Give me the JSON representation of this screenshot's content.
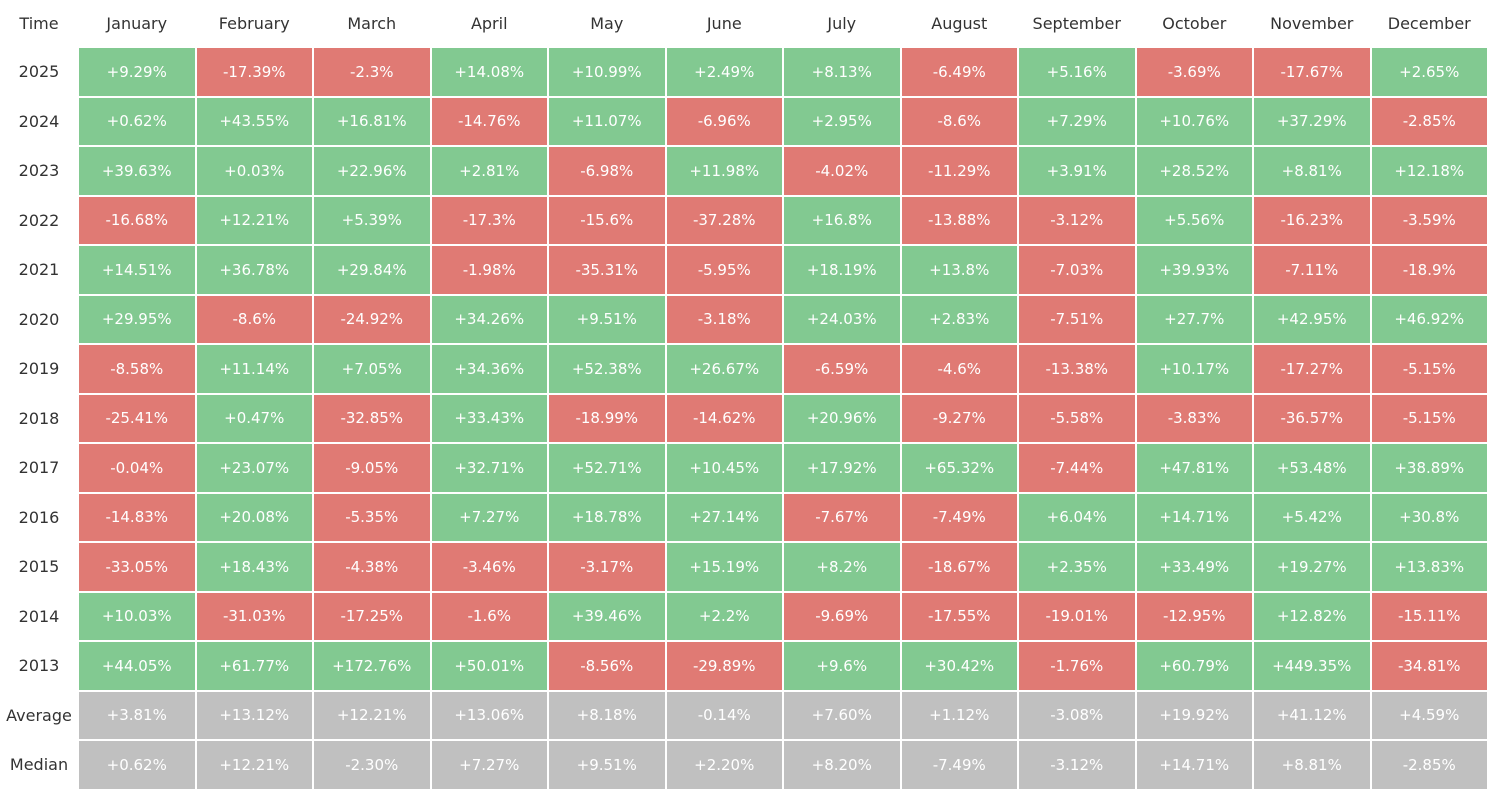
{
  "table": {
    "header": [
      "Time",
      "January",
      "February",
      "March",
      "April",
      "May",
      "June",
      "July",
      "August",
      "September",
      "October",
      "November",
      "December"
    ],
    "rows": [
      [
        "2025",
        "+9.29%",
        "-17.39%",
        "-2.3%",
        "+14.08%",
        "+10.99%",
        "+2.49%",
        "+8.13%",
        "-6.49%",
        "+5.16%",
        "-3.69%",
        "-17.67%",
        "+2.65%"
      ],
      [
        "2024",
        "+0.62%",
        "+43.55%",
        "+16.81%",
        "-14.76%",
        "+11.07%",
        "-6.96%",
        "+2.95%",
        "-8.6%",
        "+7.29%",
        "+10.76%",
        "+37.29%",
        "-2.85%"
      ],
      [
        "2023",
        "+39.63%",
        "+0.03%",
        "+22.96%",
        "+2.81%",
        "-6.98%",
        "+11.98%",
        "-4.02%",
        "-11.29%",
        "+3.91%",
        "+28.52%",
        "+8.81%",
        "+12.18%"
      ],
      [
        "2022",
        "-16.68%",
        "+12.21%",
        "+5.39%",
        "-17.3%",
        "-15.6%",
        "-37.28%",
        "+16.8%",
        "-13.88%",
        "-3.12%",
        "+5.56%",
        "-16.23%",
        "-3.59%"
      ],
      [
        "2021",
        "+14.51%",
        "+36.78%",
        "+29.84%",
        "-1.98%",
        "-35.31%",
        "-5.95%",
        "+18.19%",
        "+13.8%",
        "-7.03%",
        "+39.93%",
        "-7.11%",
        "-18.9%"
      ],
      [
        "2020",
        "+29.95%",
        "-8.6%",
        "-24.92%",
        "+34.26%",
        "+9.51%",
        "-3.18%",
        "+24.03%",
        "+2.83%",
        "-7.51%",
        "+27.7%",
        "+42.95%",
        "+46.92%"
      ],
      [
        "2019",
        "-8.58%",
        "+11.14%",
        "+7.05%",
        "+34.36%",
        "+52.38%",
        "+26.67%",
        "-6.59%",
        "-4.6%",
        "-13.38%",
        "+10.17%",
        "-17.27%",
        "-5.15%"
      ],
      [
        "2018",
        "-25.41%",
        "+0.47%",
        "-32.85%",
        "+33.43%",
        "-18.99%",
        "-14.62%",
        "+20.96%",
        "-9.27%",
        "-5.58%",
        "-3.83%",
        "-36.57%",
        "-5.15%"
      ],
      [
        "2017",
        "-0.04%",
        "+23.07%",
        "-9.05%",
        "+32.71%",
        "+52.71%",
        "+10.45%",
        "+17.92%",
        "+65.32%",
        "-7.44%",
        "+47.81%",
        "+53.48%",
        "+38.89%"
      ],
      [
        "2016",
        "-14.83%",
        "+20.08%",
        "-5.35%",
        "+7.27%",
        "+18.78%",
        "+27.14%",
        "-7.67%",
        "-7.49%",
        "+6.04%",
        "+14.71%",
        "+5.42%",
        "+30.8%"
      ],
      [
        "2015",
        "-33.05%",
        "+18.43%",
        "-4.38%",
        "-3.46%",
        "-3.17%",
        "+15.19%",
        "+8.2%",
        "-18.67%",
        "+2.35%",
        "+33.49%",
        "+19.27%",
        "+13.83%"
      ],
      [
        "2014",
        "+10.03%",
        "-31.03%",
        "-17.25%",
        "-1.6%",
        "+39.46%",
        "+2.2%",
        "-9.69%",
        "-17.55%",
        "-19.01%",
        "-12.95%",
        "+12.82%",
        "-15.11%"
      ],
      [
        "2013",
        "+44.05%",
        "+61.77%",
        "+172.76%",
        "+50.01%",
        "-8.56%",
        "-29.89%",
        "+9.6%",
        "+30.42%",
        "-1.76%",
        "+60.79%",
        "+449.35%",
        "-34.81%"
      ]
    ],
    "summary_rows": [
      [
        "Average",
        "+3.81%",
        "+13.12%",
        "+12.21%",
        "+13.06%",
        "+8.18%",
        "-0.14%",
        "+7.60%",
        "+1.12%",
        "-3.08%",
        "+19.92%",
        "+41.12%",
        "+4.59%"
      ],
      [
        "Median",
        "+0.62%",
        "+12.21%",
        "-2.30%",
        "+7.27%",
        "+9.51%",
        "+2.20%",
        "+8.20%",
        "-7.49%",
        "-3.12%",
        "+14.71%",
        "+8.81%",
        "-2.85%"
      ]
    ]
  },
  "colors": {
    "positive": "#82c991",
    "negative": "#e07a74",
    "summary": "#c0c0c0"
  }
}
